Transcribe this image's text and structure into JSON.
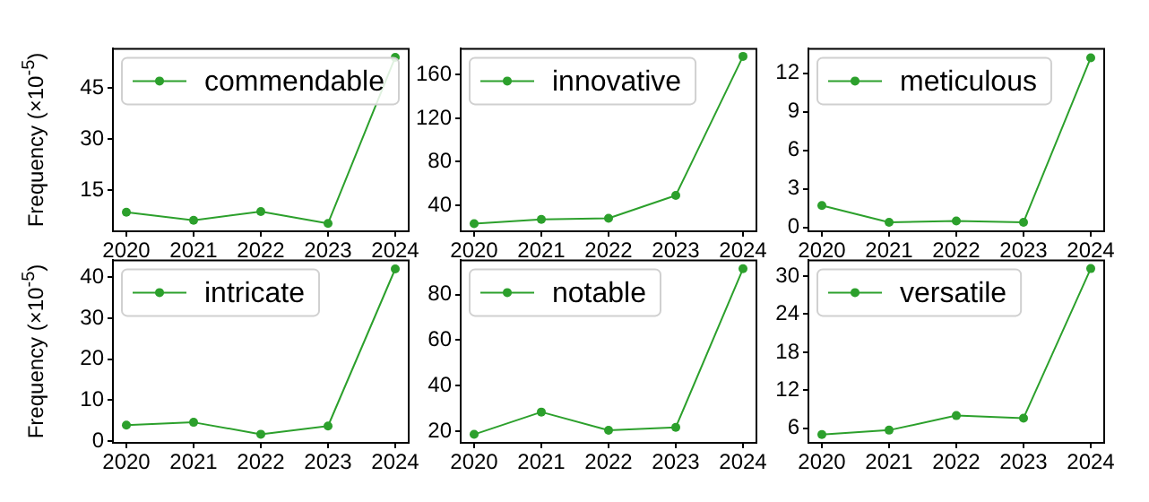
{
  "chart_data": [
    {
      "type": "line",
      "ylabel": "Frequency (×10$^{-5}$)",
      "x": [
        2020,
        2021,
        2022,
        2023,
        2024
      ],
      "xlim": [
        2019.8,
        2024.2
      ],
      "xticks": [
        2020,
        2021,
        2022,
        2023,
        2024
      ],
      "ylim": [
        3,
        56.5
      ],
      "yticks": [
        15,
        30,
        45
      ],
      "marker": "circle",
      "legend": "top left",
      "grid": false,
      "series": [
        {
          "name": "commendable",
          "color": "#2ca02c",
          "values": [
            8.6,
            6.2,
            8.8,
            5.3,
            54
          ]
        }
      ]
    },
    {
      "type": "line",
      "x": [
        2020,
        2021,
        2022,
        2023,
        2024
      ],
      "xlim": [
        2019.8,
        2024.2
      ],
      "xticks": [
        2020,
        2021,
        2022,
        2023,
        2024
      ],
      "ylim": [
        16,
        184
      ],
      "yticks": [
        40,
        80,
        120,
        160
      ],
      "marker": "circle",
      "legend": "top left",
      "grid": false,
      "series": [
        {
          "name": "innovative",
          "color": "#2ca02c",
          "values": [
            23,
            27,
            28,
            49,
            177
          ]
        }
      ]
    },
    {
      "type": "line",
      "x": [
        2020,
        2021,
        2022,
        2023,
        2024
      ],
      "xlim": [
        2019.8,
        2024.2
      ],
      "xticks": [
        2020,
        2021,
        2022,
        2023,
        2024
      ],
      "ylim": [
        -0.3,
        13.9
      ],
      "yticks": [
        0,
        3,
        6,
        9,
        12
      ],
      "marker": "circle",
      "legend": "top left",
      "grid": false,
      "series": [
        {
          "name": "meticulous",
          "color": "#2ca02c",
          "values": [
            1.7,
            0.4,
            0.5,
            0.4,
            13.2
          ]
        }
      ]
    },
    {
      "type": "line",
      "ylabel": "Frequency (×10$^{-5}$)",
      "x": [
        2020,
        2021,
        2022,
        2023,
        2024
      ],
      "xlim": [
        2019.8,
        2024.2
      ],
      "xticks": [
        2020,
        2021,
        2022,
        2023,
        2024
      ],
      "ylim": [
        -0.4,
        44.1
      ],
      "yticks": [
        0,
        10,
        20,
        30,
        40
      ],
      "marker": "circle",
      "legend": "top left",
      "grid": false,
      "series": [
        {
          "name": "intricate",
          "color": "#2ca02c",
          "values": [
            3.9,
            4.6,
            1.7,
            3.7,
            42
          ]
        }
      ]
    },
    {
      "type": "line",
      "x": [
        2020,
        2021,
        2022,
        2023,
        2024
      ],
      "xlim": [
        2019.8,
        2024.2
      ],
      "xticks": [
        2020,
        2021,
        2022,
        2023,
        2024
      ],
      "ylim": [
        15,
        95
      ],
      "yticks": [
        20,
        40,
        60,
        80
      ],
      "marker": "circle",
      "legend": "top left",
      "grid": false,
      "series": [
        {
          "name": "notable",
          "color": "#2ca02c",
          "values": [
            18.7,
            28.5,
            20.5,
            21.8,
            91.3
          ]
        }
      ]
    },
    {
      "type": "line",
      "x": [
        2020,
        2021,
        2022,
        2023,
        2024
      ],
      "xlim": [
        2019.8,
        2024.2
      ],
      "xticks": [
        2020,
        2021,
        2022,
        2023,
        2024
      ],
      "ylim": [
        3.7,
        32.5
      ],
      "yticks": [
        6,
        12,
        18,
        24,
        30
      ],
      "marker": "circle",
      "legend": "top left",
      "grid": false,
      "series": [
        {
          "name": "versatile",
          "color": "#2ca02c",
          "values": [
            5,
            5.7,
            8,
            7.6,
            31.2
          ]
        }
      ]
    }
  ]
}
